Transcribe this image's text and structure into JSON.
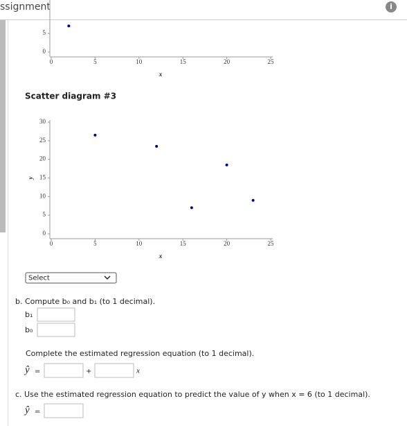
{
  "header": {
    "title": "ssignment"
  },
  "chart_data": [
    {
      "type": "scatter",
      "xlabel": "x",
      "x": [
        2
      ],
      "values": [
        7
      ],
      "color": "#00008b",
      "xlim": [
        0,
        25
      ],
      "ylim": [
        0,
        30
      ],
      "xticks": [
        0,
        5,
        10,
        15,
        20,
        25
      ],
      "yticks": [
        0,
        5
      ]
    },
    {
      "type": "scatter",
      "title": "Scatter diagram #3",
      "xlabel": "x",
      "ylabel": "y",
      "x": [
        5,
        12,
        16,
        20,
        23
      ],
      "values": [
        26.5,
        23.5,
        7,
        18.5,
        9
      ],
      "color": "#00008b",
      "xlim": [
        0,
        25
      ],
      "ylim": [
        0,
        30
      ],
      "xticks": [
        0,
        5,
        10,
        15,
        20,
        25
      ],
      "yticks": [
        0,
        5,
        10,
        15,
        20,
        25,
        30
      ]
    }
  ],
  "form": {
    "select": "Select",
    "part_b": "b. Compute b₀ and b₁ (to 1 decimal).",
    "b1_label": "b₁",
    "b0_label": "b₀",
    "equation_prompt": "Complete the estimated regression equation (to 1 decimal).",
    "yhat": "ŷ",
    "equals": "=",
    "plus": "+",
    "x": "x",
    "part_c": "c. Use the estimated regression equation to predict the value of y when x = 6 (to 1 decimal).",
    "yhat2": "ŷ",
    "equals2": "="
  }
}
